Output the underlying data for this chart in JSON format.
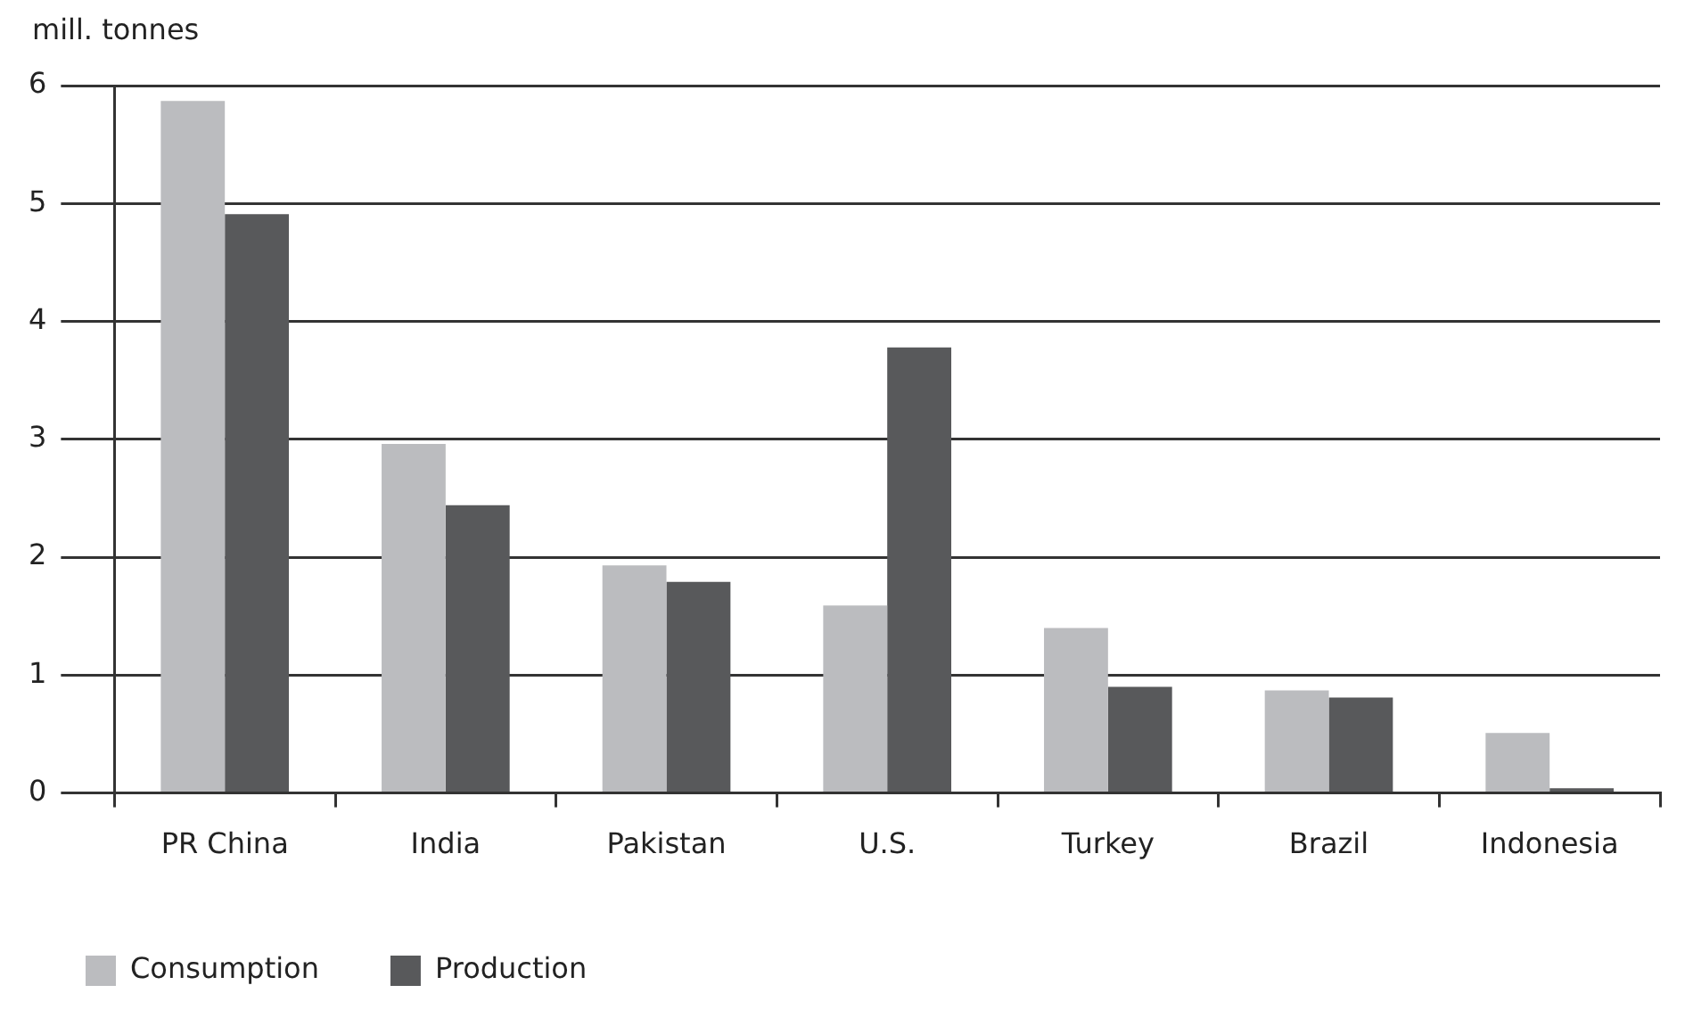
{
  "chart_data": {
    "type": "bar",
    "ylabel": "mill. tonnes",
    "categories": [
      "PR China",
      "India",
      "Pakistan",
      "U.S.",
      "Turkey",
      "Brazil",
      "Indonesia"
    ],
    "series": [
      {
        "name": "Consumption",
        "color": "#bbbcbf",
        "values": [
          5.87,
          2.96,
          1.93,
          1.59,
          1.4,
          0.87,
          0.51
        ]
      },
      {
        "name": "Production",
        "color": "#58595b",
        "values": [
          4.91,
          2.44,
          1.79,
          3.78,
          0.9,
          0.81,
          0.04
        ]
      }
    ],
    "ylim": [
      0,
      6
    ],
    "yticks": [
      0,
      1,
      2,
      3,
      4,
      5,
      6
    ],
    "grid": "y",
    "legend": "bottom left"
  }
}
